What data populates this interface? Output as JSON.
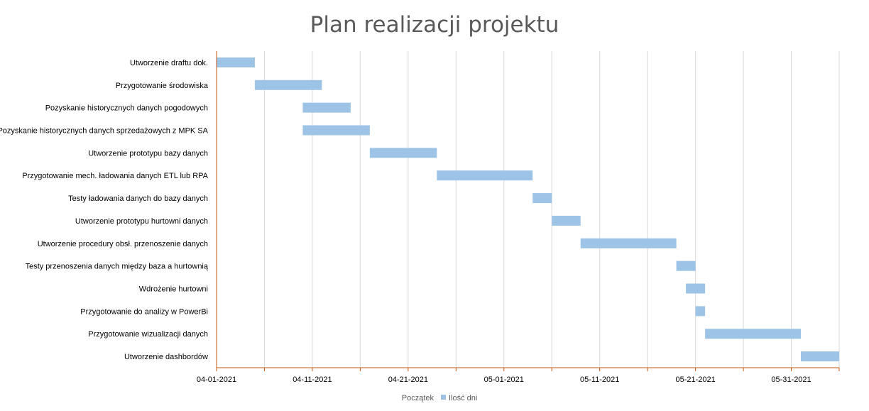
{
  "chart_data": {
    "type": "bar",
    "orientation": "horizontal-stacked-gantt",
    "title": "Plan realizacji projektu",
    "categories": [
      "Utworzenie draftu dok.",
      "Przygotowanie środowiska",
      "Pozyskanie historycznych danych pogodowych",
      "Pozyskanie historycznych danych sprzedażowych z MPK SA",
      "Utworzenie prototypu bazy danych",
      "Przygotowanie mech. ładowania danych ETL lub RPA",
      "Testy ładowania danych do bazy danych",
      "Utworzenie prototypu hurtowni danych",
      "Utworzenie procedury obsł. przenoszenie danych ",
      "Testy przenoszenia danych między baza a hurtownią",
      "Wdrożenie hurtowni",
      "Przygotowanie do analizy w PowerBi",
      "Przygotowanie wizualizacji danych",
      "Utworzenie dashbordów"
    ],
    "series": [
      {
        "name": "Początek",
        "color": "none",
        "values": [
          "2021-04-01",
          "2021-04-05",
          "2021-04-10",
          "2021-04-10",
          "2021-04-17",
          "2021-04-24",
          "2021-05-04",
          "2021-05-06",
          "2021-05-09",
          "2021-05-19",
          "2021-05-20",
          "2021-05-21",
          "2021-05-22",
          "2021-06-01"
        ]
      },
      {
        "name": "Ilość dni",
        "color": "#9DC3E6",
        "values": [
          4,
          7,
          5,
          7,
          7,
          10,
          2,
          3,
          10,
          2,
          2,
          1,
          10,
          4
        ]
      }
    ],
    "x_ticks": [
      "04-01-2021",
      "04-11-2021",
      "04-21-2021",
      "05-01-2021",
      "05-11-2021",
      "05-21-2021",
      "05-31-2021"
    ],
    "xlim": [
      "2021-04-01",
      "2021-06-05"
    ],
    "grid": "vertical",
    "legend_position": "bottom",
    "axis_color": "#C55A11",
    "grid_color": "#D9D9D9"
  }
}
